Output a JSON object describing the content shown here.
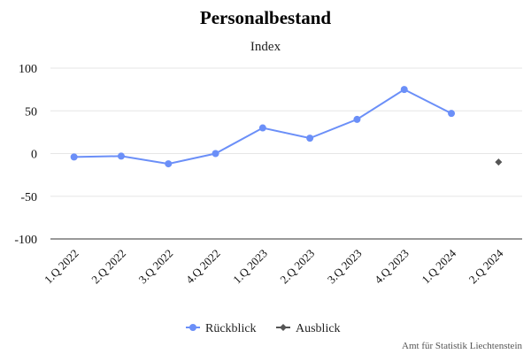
{
  "chart_data": {
    "type": "line",
    "title": "Personalbestand",
    "subtitle": "Index",
    "categories": [
      "1.Q 2022",
      "2.Q 2022",
      "3.Q 2022",
      "4.Q 2022",
      "1.Q 2023",
      "2.Q 2023",
      "3.Q 2023",
      "4.Q 2023",
      "1.Q 2024",
      "2.Q 2024"
    ],
    "yticks": [
      100,
      50,
      0,
      -50,
      -100
    ],
    "ylim": [
      -100,
      100
    ],
    "grid": true,
    "legend_position": "bottom-center",
    "series": [
      {
        "name": "Rückblick",
        "color": "#6b8ff8",
        "marker": "circle",
        "values": [
          -4,
          -3,
          -12,
          0,
          30,
          18,
          40,
          75,
          47,
          null
        ]
      },
      {
        "name": "Ausblick",
        "color": "#555555",
        "marker": "diamond",
        "values": [
          null,
          null,
          null,
          null,
          null,
          null,
          null,
          null,
          null,
          -10
        ]
      }
    ],
    "credit": "Amt für Statistik Liechtenstein"
  }
}
